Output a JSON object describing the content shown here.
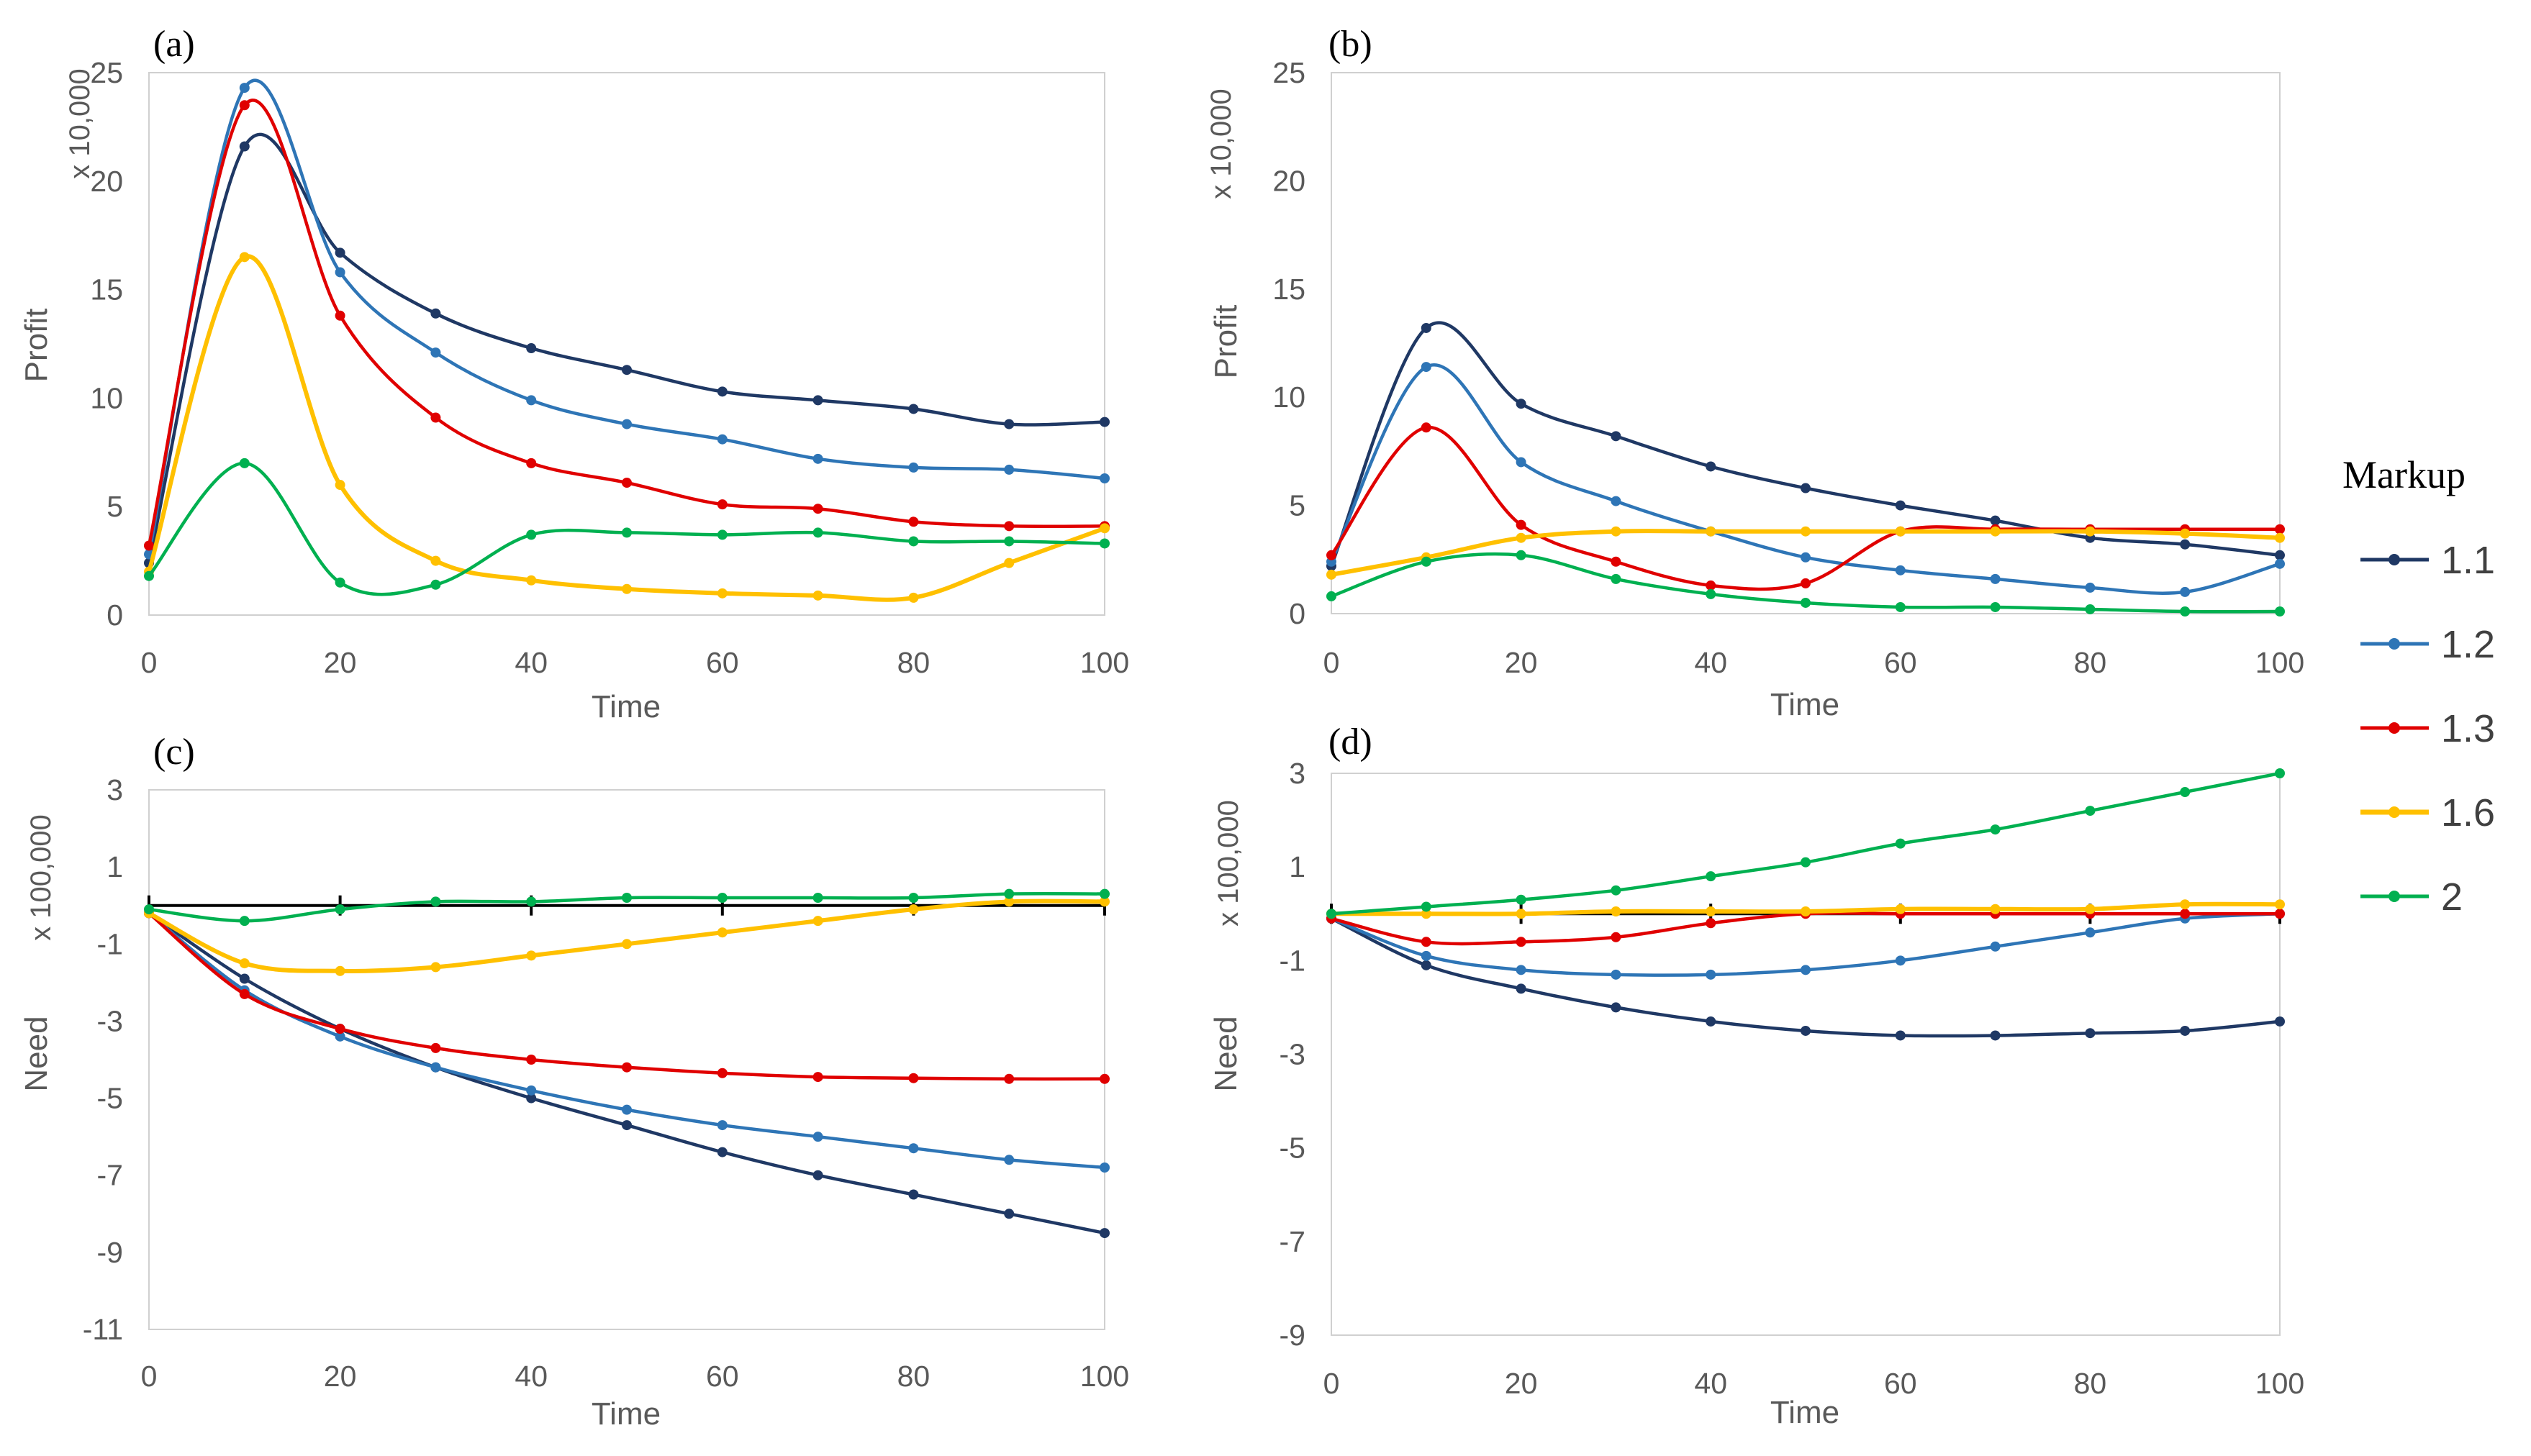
{
  "legend": {
    "title": "Markup",
    "entries": [
      {
        "label": "1.1",
        "color": "#1f3864"
      },
      {
        "label": "1.2",
        "color": "#2e75b6"
      },
      {
        "label": "1.3",
        "color": "#e00000"
      },
      {
        "label": "1.6",
        "color": "#ffc000"
      },
      {
        "label": "2",
        "color": "#00b050"
      }
    ]
  },
  "chart_data": [
    {
      "type": "line",
      "panel_label": "(a)",
      "xlabel": "Time",
      "ylabel": "Profit",
      "scale_label": "x 10,000",
      "xlim": [
        0,
        100
      ],
      "ylim": [
        0,
        25
      ],
      "xticks": [
        "0",
        "20",
        "40",
        "60",
        "80",
        "100"
      ],
      "yticks": [
        "0",
        "5",
        "10",
        "15",
        "20",
        "25"
      ],
      "x": [
        0,
        10,
        20,
        30,
        40,
        50,
        60,
        70,
        80,
        90,
        100
      ],
      "series": [
        {
          "name": "1.1",
          "values": [
            2.4,
            21.6,
            16.7,
            13.9,
            12.3,
            11.3,
            10.3,
            9.9,
            9.5,
            8.8,
            8.9
          ]
        },
        {
          "name": "1.2",
          "values": [
            2.8,
            24.3,
            15.8,
            12.1,
            9.9,
            8.8,
            8.1,
            7.2,
            6.8,
            6.7,
            6.3
          ]
        },
        {
          "name": "1.3",
          "values": [
            3.2,
            23.5,
            13.8,
            9.1,
            7.0,
            6.1,
            5.1,
            4.9,
            4.3,
            4.1,
            4.1
          ]
        },
        {
          "name": "1.6",
          "values": [
            2.0,
            16.5,
            6.0,
            2.5,
            1.6,
            1.2,
            1.0,
            0.9,
            0.8,
            2.4,
            4.0
          ]
        },
        {
          "name": "2",
          "values": [
            1.8,
            7.0,
            1.5,
            1.4,
            3.7,
            3.8,
            3.7,
            3.8,
            3.4,
            3.4,
            3.3
          ]
        }
      ],
      "baseline_ticks": false
    },
    {
      "type": "line",
      "panel_label": "(b)",
      "xlabel": "Time",
      "ylabel": "Profit",
      "scale_label": "x 10,000",
      "xlim": [
        0,
        100
      ],
      "ylim": [
        0,
        25
      ],
      "xticks": [
        "0",
        "20",
        "40",
        "60",
        "80",
        "100"
      ],
      "yticks": [
        "0",
        "5",
        "10",
        "15",
        "20",
        "25"
      ],
      "x": [
        0,
        10,
        20,
        30,
        40,
        50,
        60,
        70,
        80,
        90,
        100
      ],
      "series": [
        {
          "name": "1.1",
          "values": [
            2.2,
            13.2,
            9.7,
            8.2,
            6.8,
            5.8,
            5.0,
            4.3,
            3.5,
            3.2,
            2.7
          ]
        },
        {
          "name": "1.2",
          "values": [
            2.4,
            11.4,
            7.0,
            5.2,
            3.8,
            2.6,
            2.0,
            1.6,
            1.2,
            1.0,
            2.3
          ]
        },
        {
          "name": "1.3",
          "values": [
            2.7,
            8.6,
            4.1,
            2.4,
            1.3,
            1.4,
            3.8,
            3.9,
            3.9,
            3.9,
            3.9
          ]
        },
        {
          "name": "1.6",
          "values": [
            1.8,
            2.6,
            3.5,
            3.8,
            3.8,
            3.8,
            3.8,
            3.8,
            3.8,
            3.7,
            3.5
          ]
        },
        {
          "name": "2",
          "values": [
            0.8,
            2.4,
            2.7,
            1.6,
            0.9,
            0.5,
            0.3,
            0.3,
            0.2,
            0.1,
            0.1
          ]
        }
      ],
      "baseline_ticks": false
    },
    {
      "type": "line",
      "panel_label": "(c)",
      "xlabel": "Time",
      "ylabel": "Need",
      "scale_label": "x 100,000",
      "xlim": [
        0,
        100
      ],
      "ylim": [
        -11,
        3
      ],
      "xticks": [
        "0",
        "20",
        "40",
        "60",
        "80",
        "100"
      ],
      "yticks": [
        "-11",
        "-9",
        "-7",
        "-5",
        "-3",
        "-1",
        "1",
        "3"
      ],
      "x": [
        0,
        10,
        20,
        30,
        40,
        50,
        60,
        70,
        80,
        90,
        100
      ],
      "series": [
        {
          "name": "1.1",
          "values": [
            -0.2,
            -1.9,
            -3.2,
            -4.2,
            -5.0,
            -5.7,
            -6.4,
            -7.0,
            -7.5,
            -8.0,
            -8.5
          ]
        },
        {
          "name": "1.2",
          "values": [
            -0.2,
            -2.2,
            -3.4,
            -4.2,
            -4.8,
            -5.3,
            -5.7,
            -6.0,
            -6.3,
            -6.6,
            -6.8
          ]
        },
        {
          "name": "1.3",
          "values": [
            -0.2,
            -2.3,
            -3.2,
            -3.7,
            -4.0,
            -4.2,
            -4.35,
            -4.45,
            -4.48,
            -4.5,
            -4.5
          ]
        },
        {
          "name": "1.6",
          "values": [
            -0.2,
            -1.5,
            -1.7,
            -1.6,
            -1.3,
            -1.0,
            -0.7,
            -0.4,
            -0.1,
            0.1,
            0.1
          ]
        },
        {
          "name": "2",
          "values": [
            -0.1,
            -0.4,
            -0.1,
            0.1,
            0.1,
            0.2,
            0.2,
            0.2,
            0.2,
            0.3,
            0.3
          ]
        }
      ],
      "baseline_ticks": true
    },
    {
      "type": "line",
      "panel_label": "(d)",
      "xlabel": "Time",
      "ylabel": "Need",
      "scale_label": "x 100,000",
      "xlim": [
        0,
        100
      ],
      "ylim": [
        -9,
        3
      ],
      "xticks": [
        "0",
        "20",
        "40",
        "60",
        "80",
        "100"
      ],
      "yticks": [
        "-9",
        "-7",
        "-5",
        "-3",
        "-1",
        "1",
        "3"
      ],
      "x": [
        0,
        10,
        20,
        30,
        40,
        50,
        60,
        70,
        80,
        90,
        100
      ],
      "series": [
        {
          "name": "1.1",
          "values": [
            -0.1,
            -1.1,
            -1.6,
            -2.0,
            -2.3,
            -2.5,
            -2.6,
            -2.6,
            -2.55,
            -2.5,
            -2.3
          ]
        },
        {
          "name": "1.2",
          "values": [
            -0.1,
            -0.9,
            -1.2,
            -1.3,
            -1.3,
            -1.2,
            -1.0,
            -0.7,
            -0.4,
            -0.1,
            0.0
          ]
        },
        {
          "name": "1.3",
          "values": [
            -0.1,
            -0.6,
            -0.6,
            -0.5,
            -0.2,
            0.0,
            0.0,
            0.0,
            0.0,
            0.0,
            0.0
          ]
        },
        {
          "name": "1.6",
          "values": [
            0.0,
            0.0,
            0.0,
            0.05,
            0.05,
            0.05,
            0.1,
            0.1,
            0.1,
            0.2,
            0.2
          ]
        },
        {
          "name": "2",
          "values": [
            0.0,
            0.15,
            0.3,
            0.5,
            0.8,
            1.1,
            1.5,
            1.8,
            2.2,
            2.6,
            3.0
          ]
        }
      ],
      "baseline_ticks": true
    }
  ]
}
